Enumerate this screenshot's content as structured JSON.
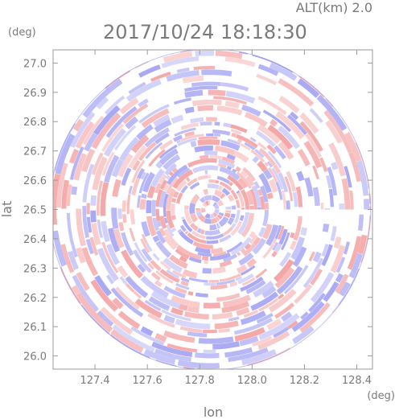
{
  "header": {
    "altitude_label": "ALT(km)  2.0",
    "timestamp": "2017/10/24 18:18:30"
  },
  "chart_data": {
    "type": "heatmap",
    "title": "2017/10/24 18:18:30",
    "subtitle": "ALT(km)  2.0",
    "xlabel": "lon",
    "ylabel": "lat",
    "x_unit": "(deg)",
    "y_unit": "(deg)",
    "xlim": [
      127.24,
      128.46
    ],
    "ylim": [
      25.955,
      27.045
    ],
    "x_ticks": [
      127.4,
      127.6,
      127.8,
      128.0,
      128.2,
      128.4
    ],
    "x_tick_labels": [
      "127.4",
      "127.6",
      "127.8",
      "128.0",
      "128.2",
      "128.4"
    ],
    "y_ticks": [
      26.0,
      26.1,
      26.2,
      26.3,
      26.4,
      26.5,
      26.6,
      26.7,
      26.8,
      26.9,
      27.0
    ],
    "y_tick_labels": [
      "26.0",
      "26.1",
      "26.2",
      "26.3",
      "26.4",
      "26.5",
      "26.6",
      "26.7",
      "26.8",
      "26.9",
      "27.0"
    ],
    "radar_center": {
      "lon": 127.84,
      "lat": 26.5
    },
    "colors": {
      "positive": "#f4a6a6",
      "negative": "#a8a8f4",
      "neutral": "#ffffff"
    },
    "grid": false
  }
}
